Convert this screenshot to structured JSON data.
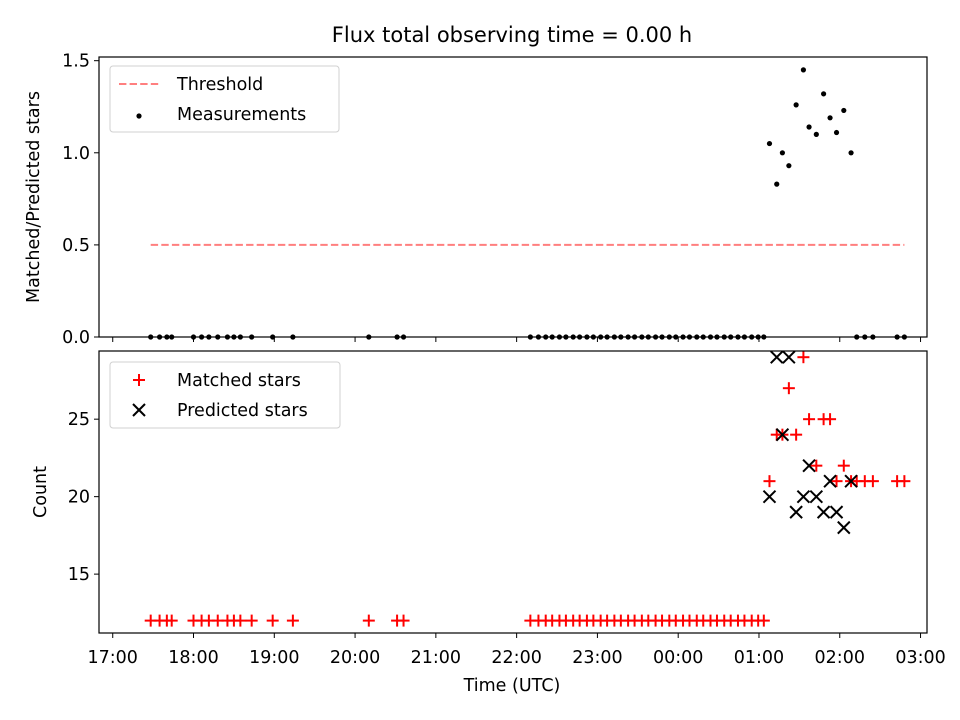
{
  "chart_data": [
    {
      "id": "flux",
      "type": "scatter",
      "title": "Flux total observing time = 0.00 h",
      "xlabel": "",
      "ylabel": "Matched/Predicted stars",
      "x_unit": "hours since 17:00 UTC",
      "xlim": [
        -0.17,
        10.08
      ],
      "ylim": [
        0.0,
        1.52
      ],
      "yticks": [
        0.0,
        0.5,
        1.0,
        1.5
      ],
      "ytick_labels": [
        "0.0",
        "0.5",
        "1.0",
        "1.5"
      ],
      "xticks": [
        0,
        1,
        2,
        3,
        4,
        5,
        6,
        7,
        8,
        9,
        10
      ],
      "legend": {
        "position": "upper-left",
        "entries": [
          "Threshold",
          "Measurements"
        ]
      },
      "threshold": {
        "name": "Threshold",
        "value": 0.5,
        "x_range": [
          0.47,
          9.8
        ],
        "color": "#ff7f7f"
      },
      "measurements": {
        "name": "Measurements",
        "color": "#000000",
        "points": [
          [
            0.47,
            0
          ],
          [
            0.58,
            0
          ],
          [
            0.67,
            0
          ],
          [
            0.73,
            0
          ],
          [
            1.0,
            0
          ],
          [
            1.1,
            0
          ],
          [
            1.19,
            0
          ],
          [
            1.3,
            0
          ],
          [
            1.42,
            0
          ],
          [
            1.5,
            0
          ],
          [
            1.58,
            0
          ],
          [
            1.72,
            0
          ],
          [
            1.98,
            0
          ],
          [
            2.23,
            0
          ],
          [
            3.17,
            0
          ],
          [
            3.52,
            0
          ],
          [
            3.6,
            0
          ],
          [
            5.17,
            0
          ],
          [
            5.27,
            0
          ],
          [
            5.36,
            0
          ],
          [
            5.44,
            0
          ],
          [
            5.53,
            0
          ],
          [
            5.61,
            0
          ],
          [
            5.7,
            0
          ],
          [
            5.78,
            0
          ],
          [
            5.87,
            0
          ],
          [
            5.95,
            0
          ],
          [
            6.04,
            0
          ],
          [
            6.12,
            0
          ],
          [
            6.21,
            0
          ],
          [
            6.29,
            0
          ],
          [
            6.38,
            0
          ],
          [
            6.46,
            0
          ],
          [
            6.55,
            0
          ],
          [
            6.63,
            0
          ],
          [
            6.72,
            0
          ],
          [
            6.8,
            0
          ],
          [
            6.89,
            0
          ],
          [
            6.97,
            0
          ],
          [
            7.06,
            0
          ],
          [
            7.14,
            0
          ],
          [
            7.23,
            0
          ],
          [
            7.31,
            0
          ],
          [
            7.4,
            0
          ],
          [
            7.48,
            0
          ],
          [
            7.57,
            0
          ],
          [
            7.65,
            0
          ],
          [
            7.74,
            0
          ],
          [
            7.82,
            0
          ],
          [
            7.91,
            0
          ],
          [
            7.99,
            0
          ],
          [
            8.06,
            0
          ],
          [
            8.13,
            1.05
          ],
          [
            8.22,
            0.83
          ],
          [
            8.29,
            1.0
          ],
          [
            8.37,
            0.93
          ],
          [
            8.46,
            1.26
          ],
          [
            8.55,
            1.45
          ],
          [
            8.62,
            1.14
          ],
          [
            8.71,
            1.1
          ],
          [
            8.8,
            1.32
          ],
          [
            8.88,
            1.19
          ],
          [
            8.96,
            1.11
          ],
          [
            9.05,
            1.23
          ],
          [
            9.14,
            1.0
          ],
          [
            9.21,
            0
          ],
          [
            9.31,
            0
          ],
          [
            9.41,
            0
          ],
          [
            9.71,
            0
          ],
          [
            9.8,
            0
          ]
        ]
      }
    },
    {
      "id": "counts",
      "type": "scatter",
      "title": "",
      "xlabel": "Time (UTC)",
      "ylabel": "Count",
      "x_unit": "hours since 17:00 UTC",
      "xlim": [
        -0.17,
        10.08
      ],
      "ylim": [
        11.2,
        29.4
      ],
      "yticks": [
        15,
        20,
        25
      ],
      "ytick_labels": [
        "15",
        "20",
        "25"
      ],
      "xticks": [
        0,
        1,
        2,
        3,
        4,
        5,
        6,
        7,
        8,
        9,
        10
      ],
      "xtick_labels": [
        "17:00",
        "18:00",
        "19:00",
        "20:00",
        "21:00",
        "22:00",
        "23:00",
        "00:00",
        "01:00",
        "02:00",
        "03:00"
      ],
      "legend": {
        "position": "upper-left",
        "entries": [
          "Matched stars",
          "Predicted stars"
        ]
      },
      "series": [
        {
          "name": "Matched stars",
          "marker": "plus",
          "color": "#ff0000",
          "points": [
            [
              0.47,
              12
            ],
            [
              0.58,
              12
            ],
            [
              0.67,
              12
            ],
            [
              0.73,
              12
            ],
            [
              1.0,
              12
            ],
            [
              1.1,
              12
            ],
            [
              1.19,
              12
            ],
            [
              1.3,
              12
            ],
            [
              1.42,
              12
            ],
            [
              1.5,
              12
            ],
            [
              1.58,
              12
            ],
            [
              1.72,
              12
            ],
            [
              1.98,
              12
            ],
            [
              2.23,
              12
            ],
            [
              3.17,
              12
            ],
            [
              3.52,
              12
            ],
            [
              3.6,
              12
            ],
            [
              5.17,
              12
            ],
            [
              5.27,
              12
            ],
            [
              5.36,
              12
            ],
            [
              5.44,
              12
            ],
            [
              5.53,
              12
            ],
            [
              5.61,
              12
            ],
            [
              5.7,
              12
            ],
            [
              5.78,
              12
            ],
            [
              5.87,
              12
            ],
            [
              5.95,
              12
            ],
            [
              6.04,
              12
            ],
            [
              6.12,
              12
            ],
            [
              6.21,
              12
            ],
            [
              6.29,
              12
            ],
            [
              6.38,
              12
            ],
            [
              6.46,
              12
            ],
            [
              6.55,
              12
            ],
            [
              6.63,
              12
            ],
            [
              6.72,
              12
            ],
            [
              6.8,
              12
            ],
            [
              6.89,
              12
            ],
            [
              6.97,
              12
            ],
            [
              7.06,
              12
            ],
            [
              7.14,
              12
            ],
            [
              7.23,
              12
            ],
            [
              7.31,
              12
            ],
            [
              7.4,
              12
            ],
            [
              7.48,
              12
            ],
            [
              7.57,
              12
            ],
            [
              7.65,
              12
            ],
            [
              7.74,
              12
            ],
            [
              7.82,
              12
            ],
            [
              7.91,
              12
            ],
            [
              7.99,
              12
            ],
            [
              8.06,
              12
            ],
            [
              8.13,
              21
            ],
            [
              8.22,
              24
            ],
            [
              8.29,
              24
            ],
            [
              8.37,
              27
            ],
            [
              8.46,
              24
            ],
            [
              8.55,
              29
            ],
            [
              8.62,
              25
            ],
            [
              8.71,
              22
            ],
            [
              8.8,
              25
            ],
            [
              8.88,
              25
            ],
            [
              8.96,
              21
            ],
            [
              9.05,
              22
            ],
            [
              9.14,
              21
            ],
            [
              9.21,
              21
            ],
            [
              9.31,
              21
            ],
            [
              9.41,
              21
            ],
            [
              9.71,
              21
            ],
            [
              9.8,
              21
            ]
          ]
        },
        {
          "name": "Predicted stars",
          "marker": "x",
          "color": "#000000",
          "points": [
            [
              8.13,
              20
            ],
            [
              8.22,
              29
            ],
            [
              8.29,
              24
            ],
            [
              8.37,
              29
            ],
            [
              8.46,
              19
            ],
            [
              8.55,
              20
            ],
            [
              8.62,
              22
            ],
            [
              8.71,
              20
            ],
            [
              8.8,
              19
            ],
            [
              8.88,
              21
            ],
            [
              8.96,
              19
            ],
            [
              9.05,
              18
            ],
            [
              9.14,
              21
            ]
          ]
        }
      ]
    }
  ]
}
